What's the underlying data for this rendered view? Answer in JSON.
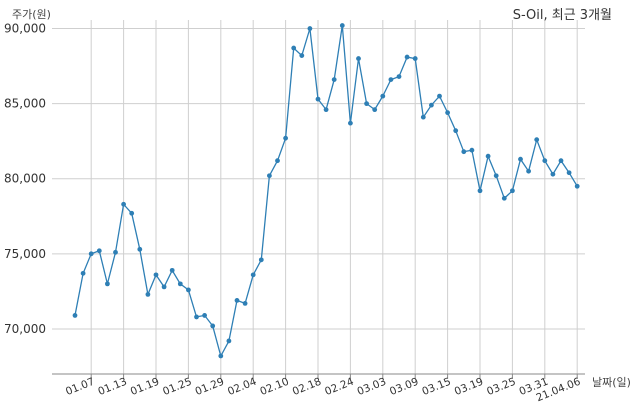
{
  "chart_data": {
    "type": "line",
    "title": "S-Oil, 최근 3개월",
    "ylabel": "주가(원)",
    "xlabel": "날짜(일)",
    "ylim": [
      67000,
      91500
    ],
    "yticks": [
      70000,
      75000,
      80000,
      85000,
      90000
    ],
    "ytick_labels": [
      "70,000",
      "75,000",
      "80,000",
      "85,000",
      "90,000"
    ],
    "xtick_labels": [
      "01.07",
      "01.13",
      "01.19",
      "01.25",
      "01.29",
      "02.04",
      "02.10",
      "02.18",
      "02.24",
      "03.03",
      "03.09",
      "03.15",
      "03.19",
      "03.25",
      "03.31",
      "21.04.06"
    ],
    "xtick_index": [
      2,
      6,
      10,
      14,
      18,
      22,
      26,
      30,
      34,
      38,
      42,
      46,
      50,
      54,
      58,
      62
    ],
    "grid": true,
    "series": [
      {
        "color": "#2e7fb5",
        "values": [
          70900,
          73700,
          75000,
          75200,
          73000,
          75100,
          78300,
          77700,
          75300,
          72300,
          73600,
          72800,
          73900,
          73000,
          72600,
          70800,
          70900,
          70200,
          68200,
          69200,
          71900,
          71700,
          73600,
          74600,
          80200,
          81200,
          82700,
          88700,
          88200,
          90000,
          85300,
          84600,
          86600,
          90200,
          83700,
          88000,
          85000,
          84600,
          85500,
          86600,
          86800,
          88100,
          88000,
          84100,
          84900,
          85500,
          84400,
          83200,
          81800,
          81900,
          79200,
          81500,
          80200,
          78700,
          79200,
          81300,
          80500,
          82600,
          81200,
          80300,
          81200,
          80400,
          79500
        ]
      }
    ]
  }
}
